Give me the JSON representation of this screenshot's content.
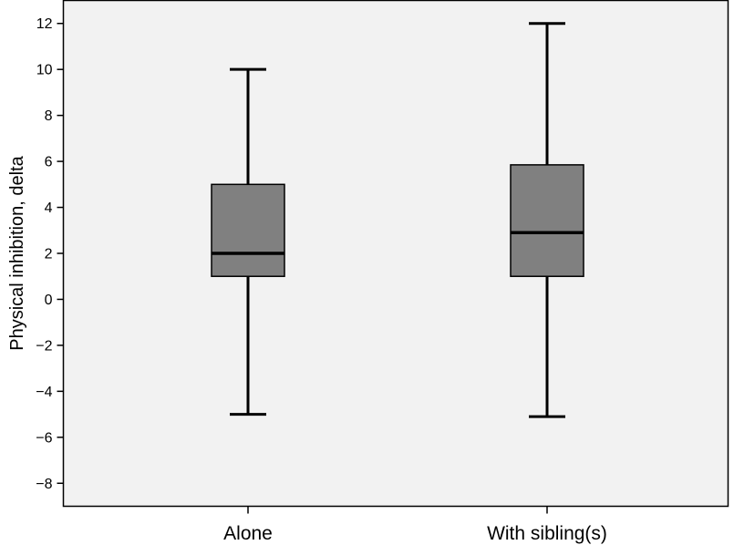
{
  "chart_data": {
    "type": "boxplot",
    "title": "",
    "xlabel": "",
    "ylabel": "Physical inhibition, delta",
    "ylim": [
      -9,
      13
    ],
    "yticks": [
      -8,
      -6,
      -4,
      -2,
      0,
      2,
      4,
      6,
      8,
      10,
      12
    ],
    "ytick_labels": [
      "−8",
      "−6",
      "−4",
      "−2",
      "0",
      "2",
      "4",
      "6",
      "8",
      "10",
      "12"
    ],
    "categories": [
      "Alone",
      "With sibling(s)"
    ],
    "boxes": [
      {
        "category": "Alone",
        "min": -5,
        "q1": 1,
        "median": 2,
        "q3": 5,
        "max": 10
      },
      {
        "category": "With sibling(s)",
        "min": -5.1,
        "q1": 1,
        "median": 2.9,
        "q3": 5.85,
        "max": 12
      }
    ],
    "grid": false,
    "colors": {
      "plot_background": "#f2f2f2",
      "box_fill": "#808080",
      "stroke": "#000000"
    }
  }
}
